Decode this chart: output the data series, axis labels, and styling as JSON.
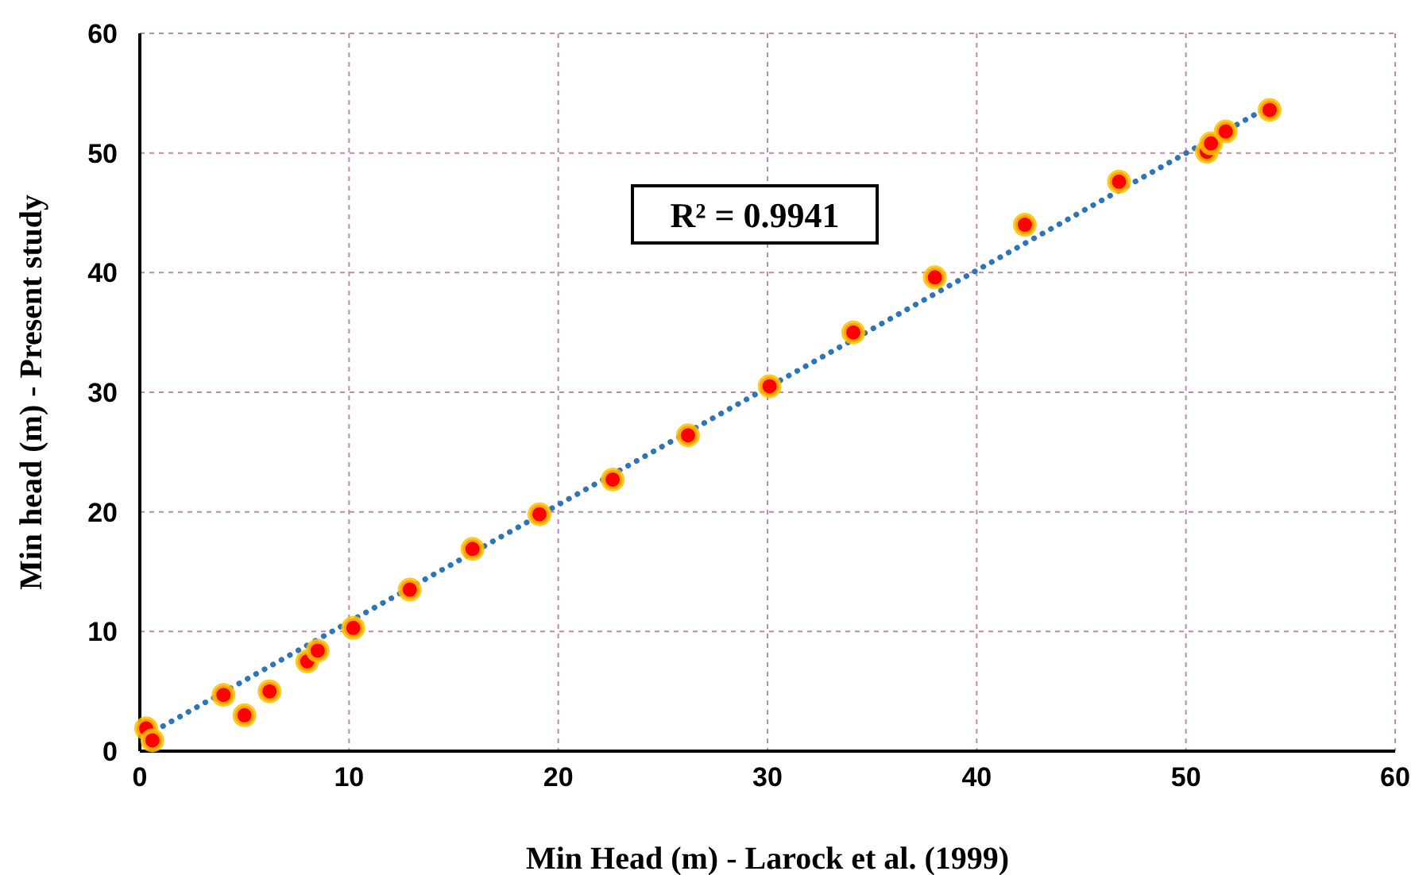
{
  "chart_data": {
    "type": "scatter",
    "xlabel": "Min Head (m) - Larock et al. (1999)",
    "ylabel": "Min head (m) - Present study",
    "xlim": [
      0,
      60
    ],
    "xticks": [
      0,
      10,
      20,
      30,
      40,
      50,
      60
    ],
    "ylim": [
      0,
      60
    ],
    "yticks": [
      0,
      10,
      20,
      30,
      40,
      50,
      60
    ],
    "grid": true,
    "marker": "circle",
    "annotations": [
      "R² = 0.9941"
    ],
    "series": [
      {
        "color": "#ff0000",
        "x": [
          0.3,
          0.6,
          4,
          5,
          6.2,
          8,
          8.5,
          10.2,
          12.9,
          15.9,
          19.1,
          22.6,
          26.2,
          30.1,
          34.1,
          38,
          42.3,
          46.8,
          51,
          51.2,
          51.9,
          54
        ],
        "values": [
          1.9,
          0.9,
          4.7,
          3,
          5,
          7.5,
          8.4,
          10.3,
          13.5,
          16.9,
          19.8,
          22.7,
          26.4,
          30.5,
          35,
          39.6,
          44,
          47.6,
          50.1,
          50.8,
          51.8,
          53.6
        ]
      },
      {
        "type": "line",
        "color": "#2e75b6",
        "line_style": "dotted",
        "marker": "none",
        "x": [
          0.3,
          54
        ],
        "values": [
          1.3,
          53.9
        ]
      }
    ]
  }
}
